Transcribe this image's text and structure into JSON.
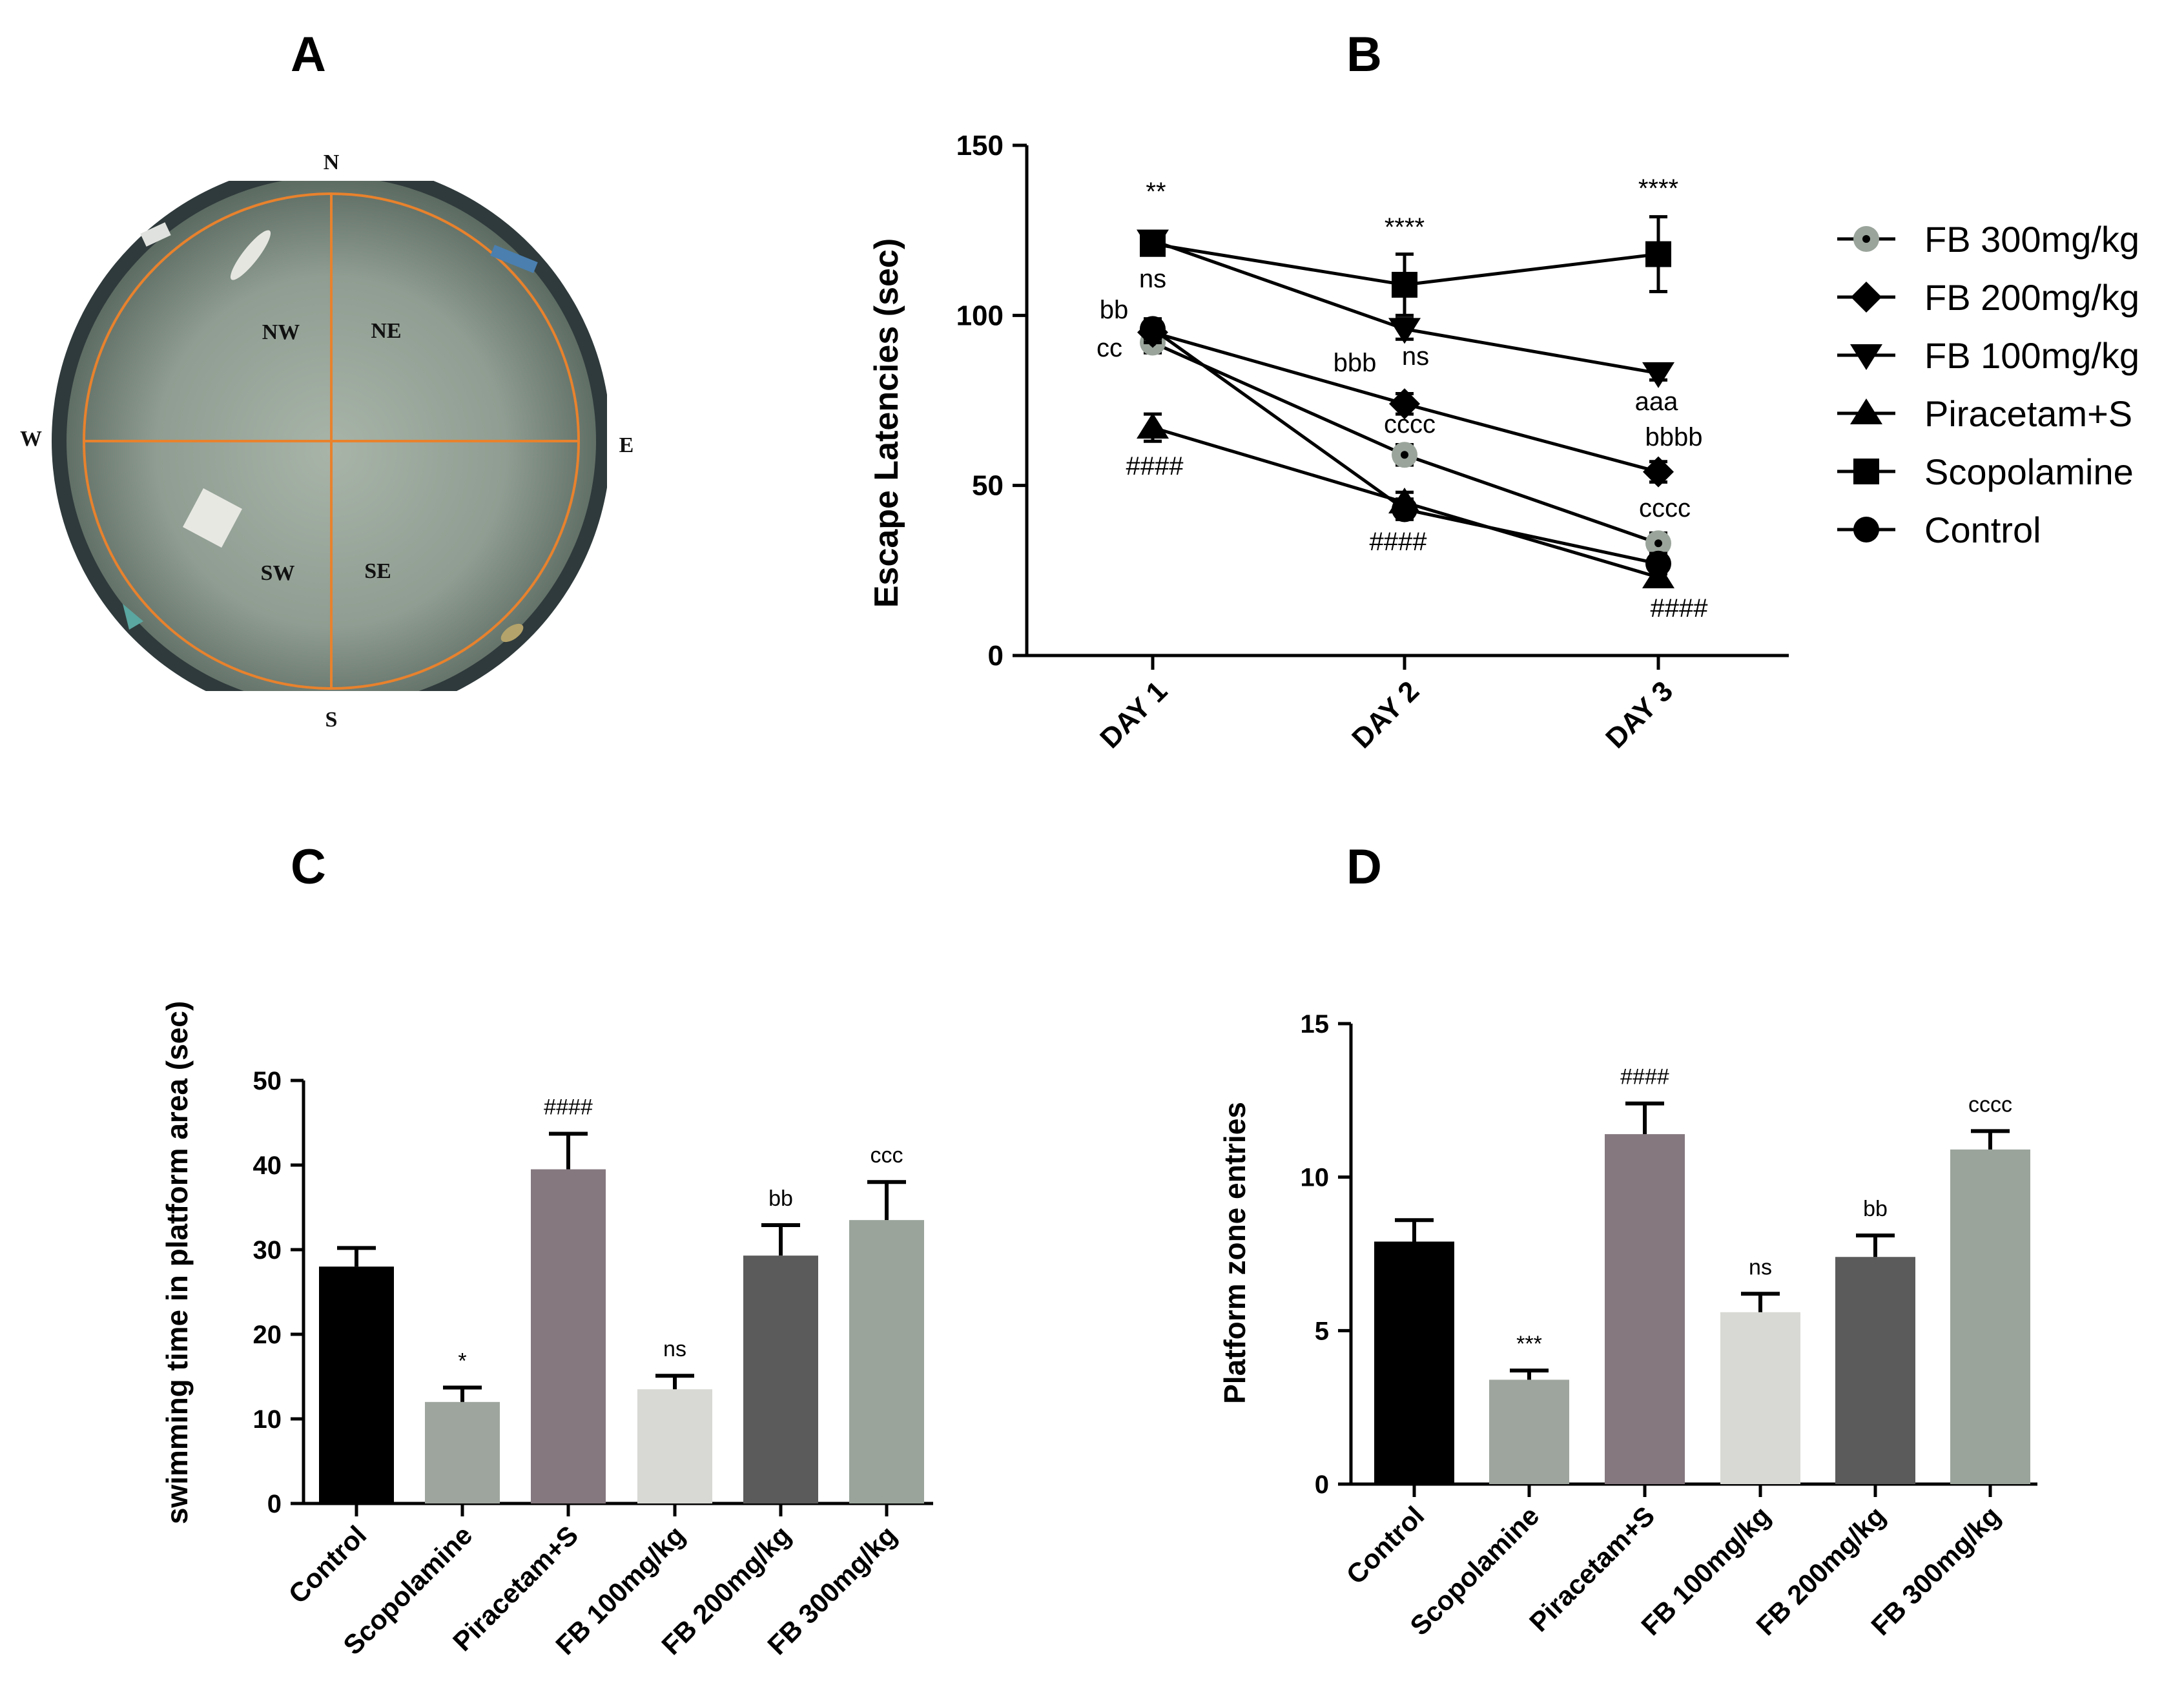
{
  "panels": {
    "A": "A",
    "B": "B",
    "C": "C",
    "D": "D"
  },
  "maze": {
    "N": "N",
    "S": "S",
    "E": "E",
    "W": "W",
    "NW": "NW",
    "NE": "NE",
    "SW": "SW",
    "SE": "SE"
  },
  "chart_data": [
    {
      "id": "B",
      "type": "line",
      "ylabel": "Escape Latencies (sec)",
      "ylim": [
        0,
        150
      ],
      "yticks": [
        "0",
        "50",
        "100",
        "150"
      ],
      "categories": [
        "DAY 1",
        "DAY 2",
        "DAY 3"
      ],
      "series": [
        {
          "name": "FB 300mg/kg",
          "marker": "circle-dot",
          "values": [
            92,
            59,
            33
          ],
          "errors": [
            3,
            3,
            3
          ]
        },
        {
          "name": "FB 200mg/kg",
          "marker": "diamond",
          "values": [
            95,
            74,
            54
          ],
          "errors": [
            3,
            3,
            3
          ]
        },
        {
          "name": "FB 100mg/kg",
          "marker": "triangle-down",
          "values": [
            122,
            96,
            83
          ],
          "errors": [
            2,
            3,
            2
          ]
        },
        {
          "name": "Piracetam+S",
          "marker": "triangle-up",
          "values": [
            67,
            45,
            23
          ],
          "errors": [
            4,
            3,
            2
          ]
        },
        {
          "name": "Scopolamine",
          "marker": "square",
          "values": [
            121,
            109,
            118
          ],
          "errors": [
            3,
            9,
            11
          ]
        },
        {
          "name": "Control",
          "marker": "circle",
          "values": [
            96,
            43,
            27
          ],
          "errors": [
            3,
            3,
            3
          ]
        }
      ],
      "annotations": [
        "**",
        "ns",
        "bb",
        "cc",
        "####",
        "****",
        "bbb",
        "ns",
        "cccc",
        "####",
        "****",
        "aaa",
        "bbbb",
        "cccc",
        "####"
      ]
    },
    {
      "id": "C",
      "type": "bar",
      "ylabel": "swimming time in platform area (sec)",
      "ylim": [
        0,
        50
      ],
      "yticks": [
        "0",
        "10",
        "20",
        "30",
        "40",
        "50"
      ],
      "categories": [
        "Control",
        "Scopolamine",
        "Piracetam+S",
        "FB 100mg/kg",
        "FB 200mg/kg",
        "FB 300mg/kg"
      ],
      "values": [
        28,
        12,
        39.5,
        13.5,
        29.3,
        33.5
      ],
      "errors": [
        2.2,
        1.7,
        4.2,
        1.6,
        3.6,
        4.5
      ],
      "colors": [
        "#000000",
        "#9ea59e",
        "#85787f",
        "#d8d8d4",
        "#5b5b5b",
        "#9aa49b"
      ],
      "labels": [
        "",
        "*",
        "####",
        "ns",
        "bb",
        "ccc"
      ]
    },
    {
      "id": "D",
      "type": "bar",
      "ylabel": "Platform zone entries",
      "ylim": [
        0,
        15
      ],
      "yticks": [
        "0",
        "5",
        "10",
        "15"
      ],
      "categories": [
        "Control",
        "Scopolamine",
        "Piracetam+S",
        "FB 100mg/kg",
        "FB 200mg/kg",
        "FB 300mg/kg"
      ],
      "values": [
        7.9,
        3.4,
        11.4,
        5.6,
        7.4,
        10.9
      ],
      "errors": [
        0.7,
        0.3,
        1.0,
        0.6,
        0.7,
        0.6
      ],
      "colors": [
        "#000000",
        "#9ea59e",
        "#85787f",
        "#d8d8d4",
        "#5b5b5b",
        "#9aa49b"
      ],
      "labels": [
        "",
        "***",
        "####",
        "ns",
        "bb",
        "cccc"
      ]
    }
  ]
}
